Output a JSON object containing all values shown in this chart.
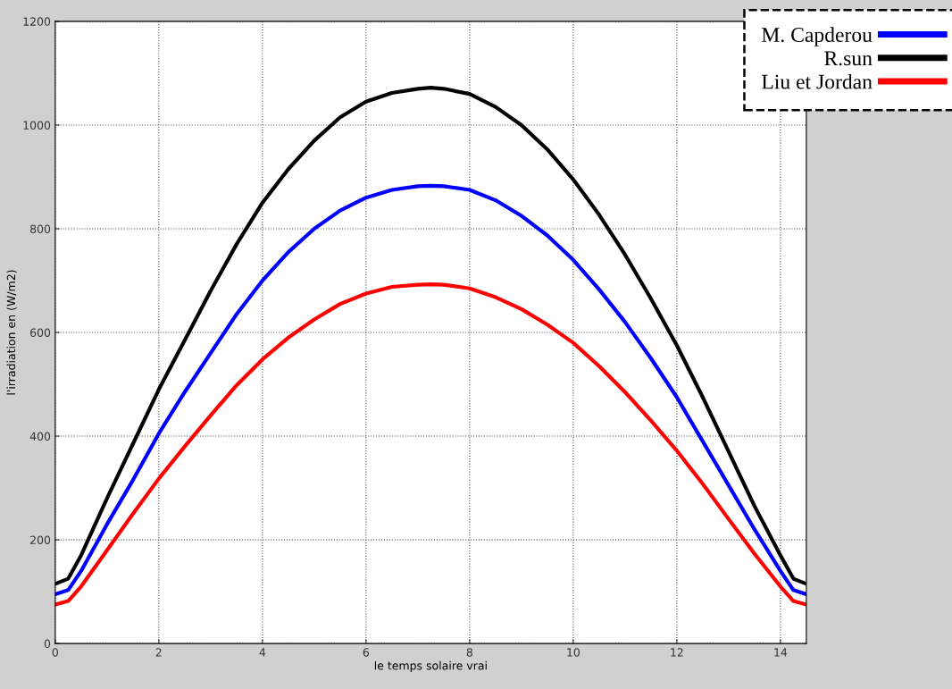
{
  "chart_data": {
    "type": "line",
    "xlabel": "le temps solaire vrai",
    "ylabel": "l'irradiation en (W/m2)",
    "x": [
      0,
      0.25,
      0.5,
      1,
      1.5,
      2,
      2.5,
      3,
      3.5,
      4,
      4.5,
      5,
      5.5,
      6,
      6.5,
      7,
      7.25,
      7.5,
      8,
      8.5,
      9,
      9.5,
      10,
      10.5,
      11,
      11.5,
      12,
      12.5,
      13,
      13.5,
      14,
      14.25,
      14.5
    ],
    "series": [
      {
        "name": "M. Capderou",
        "color": "#0000ff",
        "values": [
          95,
          103,
          140,
          230,
          315,
          405,
          485,
          560,
          635,
          700,
          755,
          800,
          835,
          860,
          875,
          882,
          883,
          882,
          875,
          855,
          825,
          787,
          740,
          683,
          620,
          550,
          475,
          390,
          305,
          220,
          140,
          103,
          95
        ]
      },
      {
        "name": "R.sun",
        "color": "#000000",
        "values": [
          115,
          125,
          170,
          280,
          385,
          490,
          585,
          680,
          770,
          850,
          915,
          970,
          1015,
          1045,
          1062,
          1070,
          1072,
          1070,
          1060,
          1035,
          1000,
          953,
          895,
          827,
          750,
          665,
          575,
          475,
          370,
          265,
          170,
          125,
          115
        ]
      },
      {
        "name": "Liu et Jordan",
        "color": "#ff0000",
        "values": [
          75,
          82,
          110,
          180,
          250,
          318,
          380,
          440,
          498,
          548,
          590,
          625,
          655,
          675,
          688,
          692,
          693,
          692,
          685,
          668,
          645,
          615,
          580,
          535,
          485,
          430,
          372,
          308,
          240,
          173,
          110,
          82,
          75
        ]
      }
    ],
    "xlim": [
      0,
      14.5
    ],
    "ylim": [
      0,
      1200
    ],
    "xticks": [
      0,
      2,
      4,
      6,
      8,
      10,
      12,
      14
    ],
    "yticks": [
      0,
      200,
      400,
      600,
      800,
      1000,
      1200
    ],
    "grid": true,
    "legend": "top right",
    "marker": "none",
    "line_style": "solid"
  }
}
